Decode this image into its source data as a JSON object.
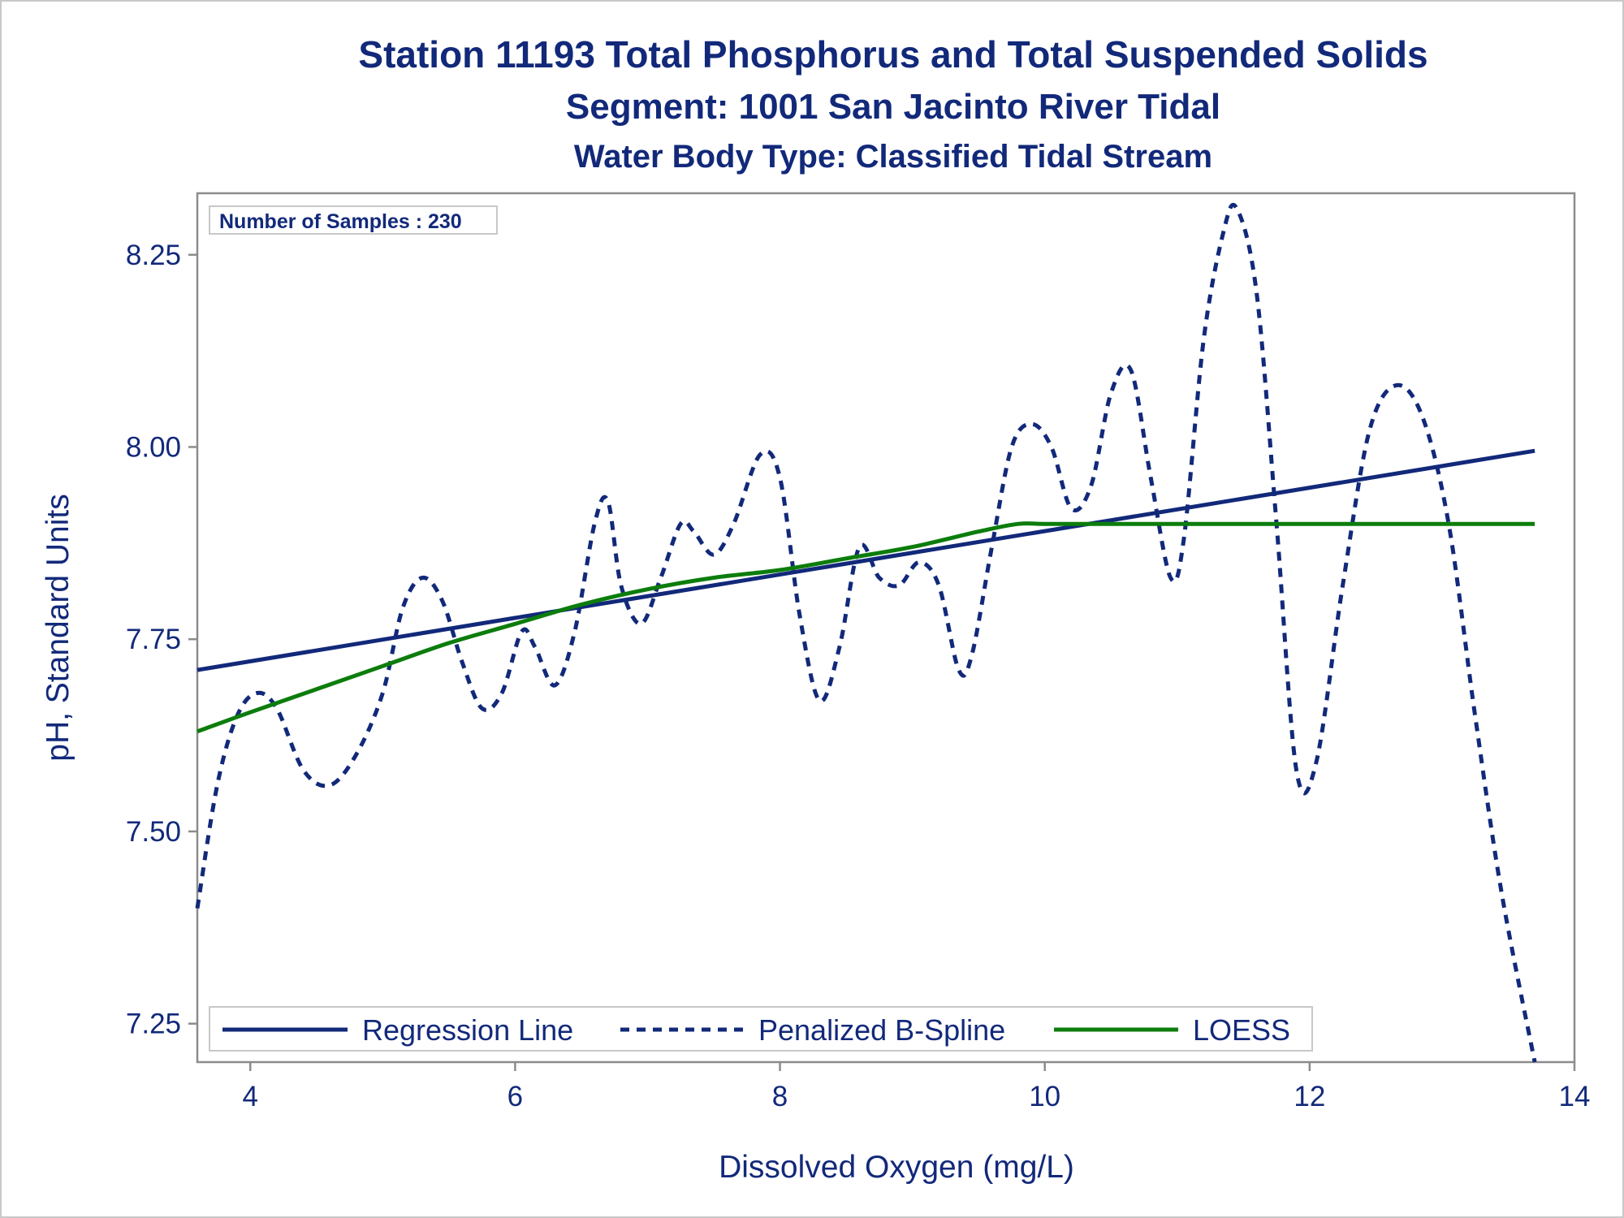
{
  "chart_data": {
    "type": "line",
    "title": "Station 11193  Total Phosphorus and Total Suspended Solids",
    "subtitle": "Segment: 1001  San Jacinto River Tidal",
    "subtitle2": "Water Body Type: Classified Tidal Stream",
    "xlabel": "Dissolved Oxygen (mg/L)",
    "ylabel": "pH, Standard Units",
    "xlim": [
      3.6,
      14.0
    ],
    "ylim": [
      7.2,
      8.33
    ],
    "xticks": [
      "4",
      "6",
      "8",
      "10",
      "12",
      "14"
    ],
    "xtick_values": [
      4,
      6,
      8,
      10,
      12,
      14
    ],
    "yticks": [
      "7.25",
      "7.50",
      "7.75",
      "8.00",
      "8.25"
    ],
    "ytick_values": [
      7.25,
      7.5,
      7.75,
      8.0,
      8.25
    ],
    "inset": "Number of Samples : 230",
    "legend_position": "bottom-inside",
    "grid": false,
    "colors": {
      "regression": "#12297a",
      "spline": "#12297a",
      "loess": "#0c7d0c",
      "text": "#12297a",
      "axis": "#8c8c8c"
    },
    "series": [
      {
        "name": "Regression Line",
        "style": "solid",
        "x": [
          3.6,
          13.7
        ],
        "y": [
          7.71,
          7.995
        ]
      },
      {
        "name": "Penalized B-Spline",
        "style": "dashed",
        "x": [
          3.6,
          3.75,
          3.9,
          4.05,
          4.2,
          4.4,
          4.6,
          4.8,
          5.0,
          5.15,
          5.3,
          5.45,
          5.6,
          5.75,
          5.9,
          6.05,
          6.15,
          6.3,
          6.45,
          6.6,
          6.7,
          6.8,
          6.95,
          7.1,
          7.25,
          7.35,
          7.5,
          7.65,
          7.85,
          8.0,
          8.15,
          8.3,
          8.45,
          8.6,
          8.75,
          8.9,
          9.05,
          9.2,
          9.35,
          9.45,
          9.6,
          9.75,
          9.9,
          10.05,
          10.2,
          10.35,
          10.5,
          10.65,
          10.8,
          10.95,
          11.05,
          11.2,
          11.35,
          11.45,
          11.6,
          11.75,
          11.9,
          12.05,
          12.25,
          12.45,
          12.65,
          12.85,
          13.05,
          13.25,
          13.45,
          13.7
        ],
        "y": [
          7.4,
          7.56,
          7.65,
          7.68,
          7.66,
          7.58,
          7.56,
          7.6,
          7.68,
          7.79,
          7.83,
          7.8,
          7.72,
          7.66,
          7.68,
          7.76,
          7.74,
          7.69,
          7.76,
          7.9,
          7.93,
          7.82,
          7.77,
          7.83,
          7.9,
          7.89,
          7.86,
          7.9,
          7.99,
          7.96,
          7.78,
          7.67,
          7.74,
          7.87,
          7.83,
          7.82,
          7.85,
          7.82,
          7.71,
          7.73,
          7.87,
          8.0,
          8.03,
          8.0,
          7.92,
          7.95,
          8.07,
          8.1,
          7.96,
          7.83,
          7.88,
          8.14,
          8.28,
          8.31,
          8.2,
          7.9,
          7.58,
          7.59,
          7.82,
          8.02,
          8.08,
          8.04,
          7.9,
          7.65,
          7.42,
          7.2
        ]
      },
      {
        "name": "LOESS",
        "style": "solid",
        "x": [
          3.6,
          4.0,
          4.5,
          5.0,
          5.5,
          6.0,
          6.5,
          7.0,
          7.5,
          8.0,
          8.5,
          9.0,
          9.5,
          9.8,
          10.0,
          10.5,
          11.0,
          11.5,
          12.0,
          12.5,
          13.0,
          13.7
        ],
        "y": [
          7.63,
          7.655,
          7.685,
          7.715,
          7.745,
          7.77,
          7.795,
          7.815,
          7.83,
          7.84,
          7.855,
          7.87,
          7.89,
          7.9,
          7.9,
          7.9,
          7.9,
          7.9,
          7.9,
          7.9,
          7.9,
          7.9
        ]
      }
    ]
  }
}
